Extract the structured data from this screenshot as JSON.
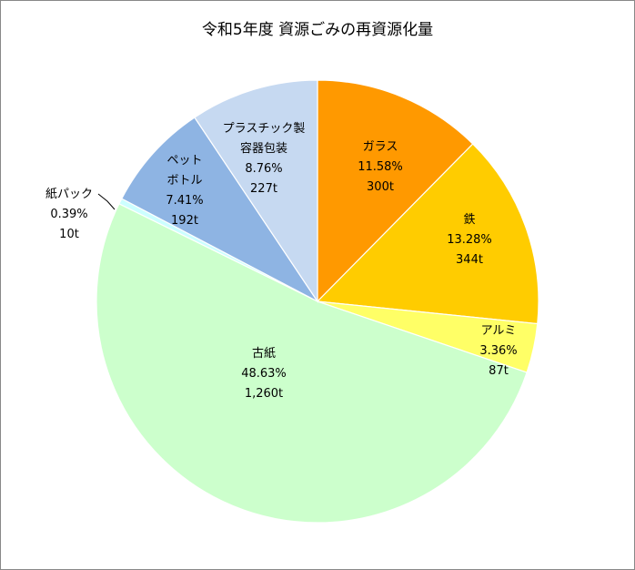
{
  "chart_data": {
    "type": "pie",
    "title": "令和5年度 資源ごみの再資源化量",
    "slices": [
      {
        "name": "ガラス",
        "name_lines": [
          "ガラス"
        ],
        "percent_label": "11.58%",
        "amount_label": "300t",
        "value": 300,
        "color": "#ff9900"
      },
      {
        "name": "鉄",
        "name_lines": [
          "鉄"
        ],
        "percent_label": "13.28%",
        "amount_label": "344t",
        "value": 344,
        "color": "#ffcc00"
      },
      {
        "name": "アルミ",
        "name_lines": [
          "アルミ"
        ],
        "percent_label": "3.36%",
        "amount_label": "87t",
        "value": 87,
        "color": "#ffff66"
      },
      {
        "name": "古紙",
        "name_lines": [
          "古紙"
        ],
        "percent_label": "48.63%",
        "amount_label": "1,260t",
        "value": 1260,
        "color": "#ccffcc"
      },
      {
        "name": "紙パック",
        "name_lines": [
          "紙パック"
        ],
        "percent_label": "0.39%",
        "amount_label": "10t",
        "value": 10,
        "color": "#ccffff"
      },
      {
        "name": "ペットボトル",
        "name_lines": [
          "ペット",
          "ボトル"
        ],
        "percent_label": "7.41%",
        "amount_label": "192t",
        "value": 192,
        "color": "#8eb4e3"
      },
      {
        "name": "プラスチック製容器包装",
        "name_lines": [
          "プラスチック製",
          "容器包装"
        ],
        "percent_label": "8.76%",
        "amount_label": "227t",
        "value": 227,
        "color": "#c6d9f1"
      }
    ],
    "start_angle": "12 o'clock",
    "direction": "clockwise",
    "legend": "none"
  }
}
